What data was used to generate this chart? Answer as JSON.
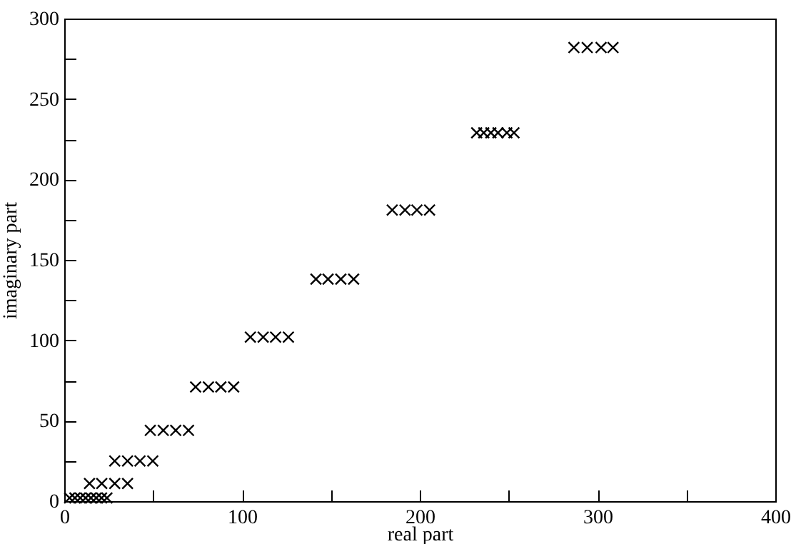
{
  "chart_data": {
    "type": "scatter",
    "xlabel": "real part",
    "ylabel": "imaginary part",
    "x": [
      3,
      6,
      9,
      12,
      15,
      18,
      21,
      24,
      14.2,
      21.1,
      28.4,
      35.6,
      28.4,
      35.6,
      42.6,
      49.8,
      48.4,
      55.7,
      62.7,
      69.9,
      73.9,
      81.1,
      88.1,
      95.3,
      104.7,
      111.9,
      118.9,
      126.1,
      141.6,
      148.4,
      155.6,
      162.8,
      184.5,
      191.7,
      198.4,
      205.5,
      232,
      236,
      240,
      244,
      249,
      253,
      286.7,
      294.2,
      302,
      308.7
    ],
    "series": [
      {
        "color": "#000000",
        "values": [
          2,
          2,
          2,
          2,
          2,
          2,
          2,
          2,
          11,
          11,
          11,
          11,
          25,
          25,
          25,
          25,
          44,
          44,
          44,
          44,
          71,
          71,
          71,
          71,
          102,
          102,
          102,
          102,
          138,
          138,
          138,
          138,
          181,
          181,
          181,
          181,
          229,
          229,
          229,
          229,
          229,
          229,
          282,
          282,
          282,
          282
        ]
      }
    ],
    "xlim": [
      0,
      400
    ],
    "ylim": [
      0,
      300
    ],
    "xticks": [
      0,
      {
        "value": 50,
        "label": null
      },
      100,
      {
        "value": 150,
        "label": null
      },
      200,
      {
        "value": 250,
        "label": null
      },
      300,
      {
        "value": 350,
        "label": null
      },
      400
    ],
    "yticks": [
      0,
      {
        "value": 25,
        "label": null
      },
      50,
      {
        "value": 75,
        "label": null
      },
      100,
      {
        "value": 125,
        "label": null
      },
      150,
      {
        "value": 175,
        "label": null
      },
      200,
      {
        "value": 225,
        "label": null
      },
      250,
      {
        "value": 275,
        "label": null
      },
      300
    ],
    "marker": "cross",
    "grid": false
  }
}
